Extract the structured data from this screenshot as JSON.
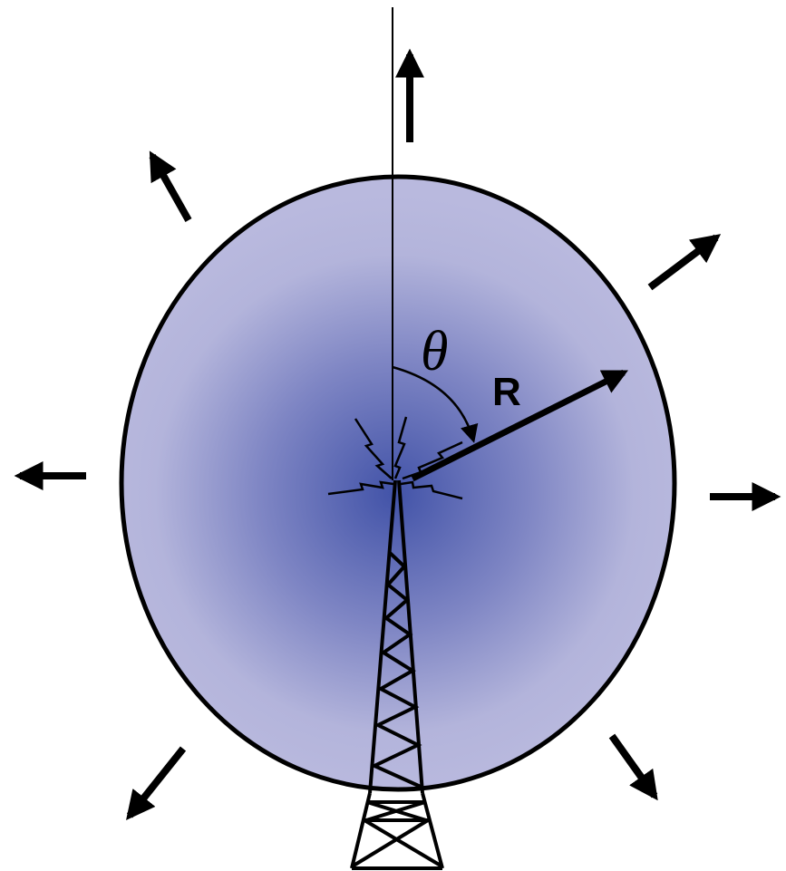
{
  "labels": {
    "angle": "θ",
    "radius": "R"
  }
}
